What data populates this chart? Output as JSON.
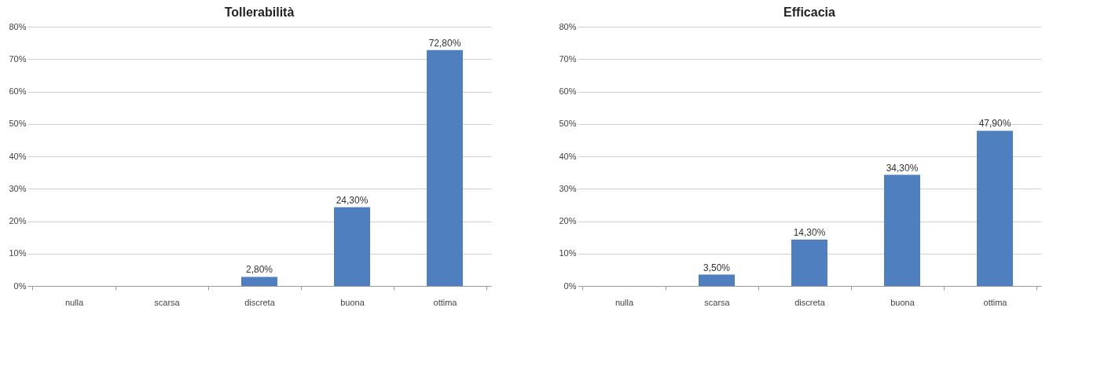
{
  "chart_data": [
    {
      "type": "bar",
      "title": "Tollerabilità",
      "categories": [
        "nulla",
        "scarsa",
        "discreta",
        "buona",
        "ottima"
      ],
      "values": [
        0,
        0,
        2.8,
        24.3,
        72.8
      ],
      "value_labels": [
        null,
        null,
        "2,80%",
        "24,30%",
        "72,80%"
      ],
      "color": "#4f7fbf",
      "ylim": [
        0,
        80
      ],
      "yticks": [
        {
          "value": 0,
          "label": "0%"
        },
        {
          "value": 10,
          "label": "10%"
        },
        {
          "value": 20,
          "label": "20%"
        },
        {
          "value": 30,
          "label": "30%"
        },
        {
          "value": 40,
          "label": "40%"
        },
        {
          "value": 50,
          "label": "50%"
        },
        {
          "value": 60,
          "label": "60%"
        },
        {
          "value": 70,
          "label": "70%"
        },
        {
          "value": 80,
          "label": "80%"
        }
      ],
      "grid": "y"
    },
    {
      "type": "bar",
      "title": "Efficacia",
      "categories": [
        "nulla",
        "scarsa",
        "discreta",
        "buona",
        "ottima"
      ],
      "values": [
        0,
        3.5,
        14.3,
        34.3,
        47.9
      ],
      "value_labels": [
        null,
        "3,50%",
        "14,30%",
        "34,30%",
        "47,90%"
      ],
      "color": "#4f7fbf",
      "ylim": [
        0,
        80
      ],
      "yticks": [
        {
          "value": 0,
          "label": "0%"
        },
        {
          "value": 10,
          "label": "10%"
        },
        {
          "value": 20,
          "label": "20%"
        },
        {
          "value": 30,
          "label": "30%"
        },
        {
          "value": 40,
          "label": "40%"
        },
        {
          "value": 50,
          "label": "50%"
        },
        {
          "value": 60,
          "label": "60%"
        },
        {
          "value": 70,
          "label": "70%"
        },
        {
          "value": 80,
          "label": "80%"
        }
      ],
      "grid": "y"
    }
  ]
}
